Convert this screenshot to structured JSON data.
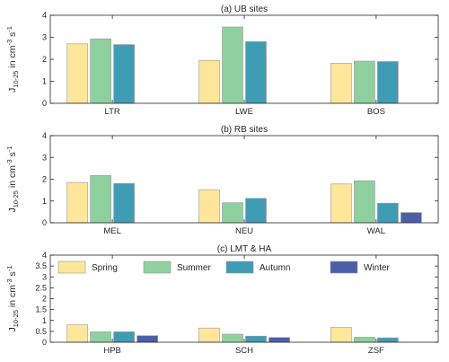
{
  "chart_data": [
    {
      "type": "bar",
      "title": "(a) UB sites",
      "categories": [
        "LTR",
        "LWE",
        "BOS"
      ],
      "series": [
        {
          "name": "Spring",
          "values": [
            2.7,
            1.95,
            1.82
          ]
        },
        {
          "name": "Summer",
          "values": [
            2.93,
            3.47,
            1.92
          ]
        },
        {
          "name": "Autumn",
          "values": [
            2.67,
            2.8,
            1.9
          ]
        },
        {
          "name": "Winter",
          "values": [
            null,
            null,
            null
          ]
        }
      ],
      "ylim": [
        0,
        4
      ],
      "yticks": [
        "0",
        "1",
        "2",
        "3",
        "4"
      ],
      "ylabel": "J10-25 in cm-3 s-1",
      "grid": false
    },
    {
      "type": "bar",
      "title": "(b) RB sites",
      "categories": [
        "MEL",
        "NEU",
        "WAL"
      ],
      "series": [
        {
          "name": "Spring",
          "values": [
            1.85,
            1.52,
            1.78
          ]
        },
        {
          "name": "Summer",
          "values": [
            2.17,
            0.92,
            1.93
          ]
        },
        {
          "name": "Autumn",
          "values": [
            1.8,
            1.12,
            0.9
          ]
        },
        {
          "name": "Winter",
          "values": [
            null,
            null,
            0.47
          ]
        }
      ],
      "ylim": [
        0,
        4
      ],
      "yticks": [
        "0",
        "1",
        "2",
        "3",
        "4"
      ],
      "ylabel": "J10-25 in cm-3 s-1",
      "grid": false
    },
    {
      "type": "bar",
      "title": "(c) LMT & HA",
      "categories": [
        "HPB",
        "SCH",
        "ZSF"
      ],
      "series": [
        {
          "name": "Spring",
          "values": [
            0.8,
            0.65,
            0.68
          ]
        },
        {
          "name": "Summer",
          "values": [
            0.48,
            0.37,
            0.23
          ]
        },
        {
          "name": "Autumn",
          "values": [
            0.48,
            0.28,
            0.2
          ]
        },
        {
          "name": "Winter",
          "values": [
            0.3,
            0.22,
            null
          ]
        }
      ],
      "ylim": [
        0,
        4
      ],
      "yticks": [
        "0",
        "0.5",
        "1",
        "1.5",
        "2",
        "2.5",
        "3",
        "3.5",
        "4"
      ],
      "ylabel": "J10-25 in cm-3 s-1",
      "legend": {
        "placement": "top",
        "entries": [
          "Spring",
          "Summer",
          "Autumn",
          "Winter"
        ]
      },
      "grid": false
    }
  ],
  "ylabel_parts": {
    "main": "J",
    "sub": "10-25",
    "mid": " in cm",
    "sup1": "-3",
    "gap": " s",
    "sup2": "-1"
  },
  "colors": {
    "Spring": "#FFE699",
    "Summer": "#8FD19E",
    "Autumn": "#3E9CB4",
    "Winter": "#4A5FA8",
    "edge": "#9a9a9a",
    "axis": "#262626"
  }
}
